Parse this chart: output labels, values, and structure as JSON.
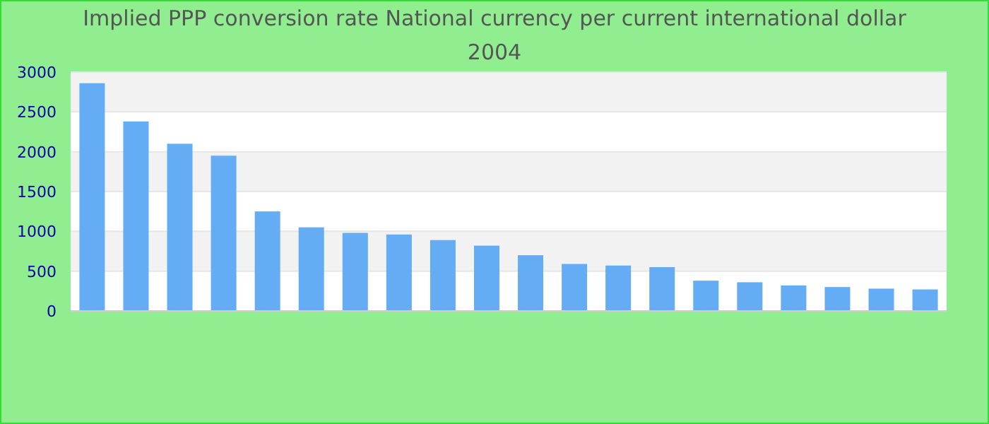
{
  "chart_data": {
    "type": "bar",
    "title": "Implied PPP conversion rate  National currency per current international dollar",
    "subtitle": "2004",
    "categories": [
      null,
      null,
      null,
      null,
      null,
      null,
      null,
      null,
      null,
      null,
      null,
      null,
      null,
      null,
      null,
      null,
      null,
      null,
      null,
      null
    ],
    "values": [
      2860,
      2380,
      2100,
      1950,
      1250,
      1050,
      980,
      960,
      890,
      820,
      700,
      590,
      570,
      550,
      380,
      360,
      320,
      300,
      280,
      270
    ],
    "color": "#64acf4",
    "ylim": [
      0,
      3000
    ],
    "yticks": [
      0,
      500,
      1000,
      1500,
      2000,
      2500,
      3000
    ],
    "grid": "y"
  }
}
